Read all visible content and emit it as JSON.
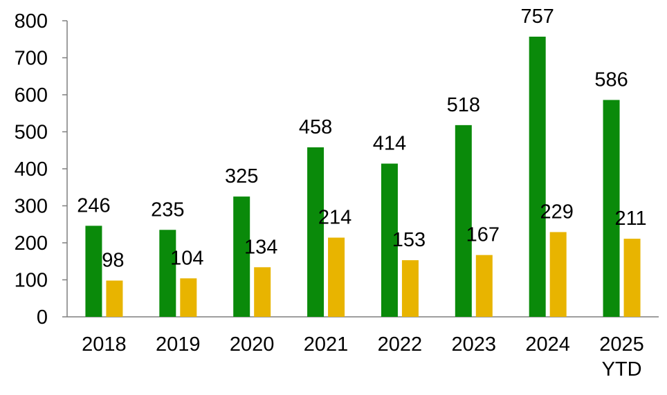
{
  "chart_data": {
    "type": "bar",
    "categories": [
      [
        "2018"
      ],
      [
        "2019"
      ],
      [
        "2020"
      ],
      [
        "2021"
      ],
      [
        "2022"
      ],
      [
        "2023"
      ],
      [
        "2024"
      ],
      [
        "2025",
        "YTD"
      ]
    ],
    "series": [
      {
        "values": [
          246,
          235,
          325,
          458,
          414,
          518,
          757,
          586
        ],
        "color": "#0A8A0A"
      },
      {
        "values": [
          98,
          104,
          134,
          214,
          153,
          167,
          229,
          211
        ],
        "color": "#E8B400"
      }
    ],
    "ylim": [
      0,
      800
    ],
    "yticks": [
      0,
      100,
      200,
      300,
      400,
      500,
      600,
      700,
      800
    ],
    "grid": false,
    "legend": "none",
    "title": "",
    "xlabel": "",
    "ylabel": ""
  }
}
